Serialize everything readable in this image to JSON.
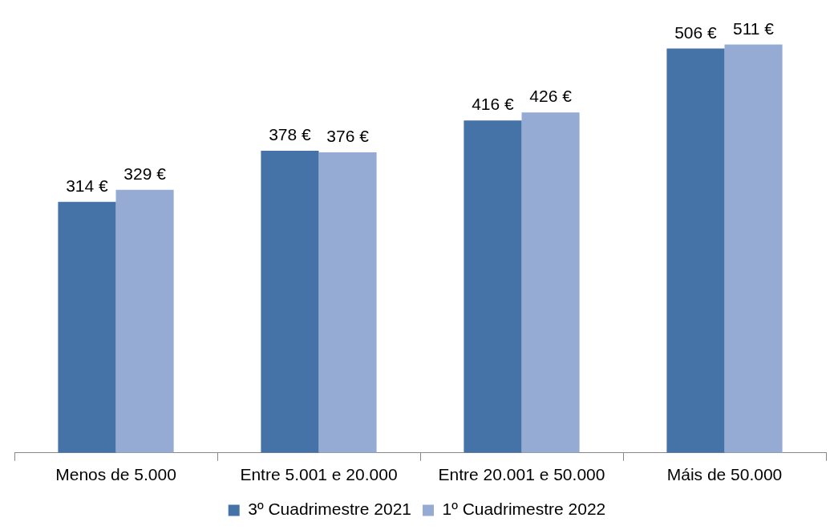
{
  "chart_data": {
    "type": "bar",
    "categories": [
      "Menos de 5.000",
      "Entre 5.001 e 20.000",
      "Entre 20.001 e 50.000",
      "Máis de 50.000"
    ],
    "series": [
      {
        "name": "3º Cuadrimestre 2021",
        "color": "#4573a7",
        "values": [
          314,
          378,
          416,
          506
        ],
        "value_labels": [
          "314 €",
          "378 €",
          "416 €",
          "506 €"
        ]
      },
      {
        "name": "1º Cuadrimestre 2022",
        "color": "#95abd3",
        "values": [
          329,
          376,
          426,
          511
        ],
        "value_labels": [
          "329 €",
          "376 €",
          "426 €",
          "511 €"
        ]
      }
    ],
    "relative": false,
    "legend": "bottom",
    "grid": false
  }
}
